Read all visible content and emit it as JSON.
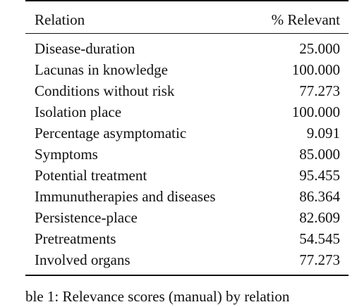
{
  "table": {
    "headers": {
      "relation": "Relation",
      "relevant": "% Relevant"
    },
    "rows": [
      {
        "relation": "Disease-duration",
        "relevant": "25.000"
      },
      {
        "relation": "Lacunas in knowledge",
        "relevant": "100.000"
      },
      {
        "relation": "Conditions without risk",
        "relevant": "77.273"
      },
      {
        "relation": "Isolation place",
        "relevant": "100.000"
      },
      {
        "relation": "Percentage asymptomatic",
        "relevant": "9.091"
      },
      {
        "relation": "Symptoms",
        "relevant": "85.000"
      },
      {
        "relation": "Potential treatment",
        "relevant": "95.455"
      },
      {
        "relation": "Immunutherapies and diseases",
        "relevant": "86.364"
      },
      {
        "relation": "Persistence-place",
        "relevant": "82.609"
      },
      {
        "relation": "Pretreatments",
        "relevant": "54.545"
      },
      {
        "relation": "Involved organs",
        "relevant": "77.273"
      }
    ]
  },
  "caption": "ble 1: Relevance scores (manual) by relation"
}
